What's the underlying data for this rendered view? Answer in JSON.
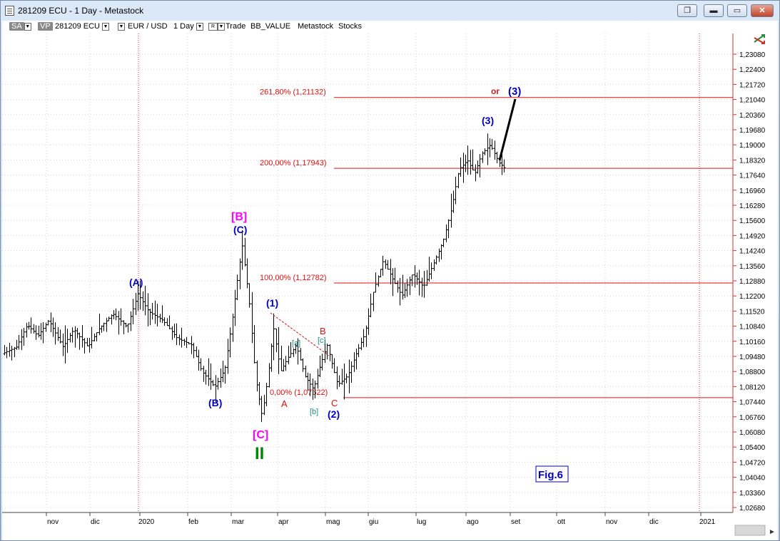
{
  "window": {
    "title": "281209 ECU - 1 Day - Metastock",
    "buttons": {
      "restore_label": "❐",
      "minimize_label": "▬",
      "maximize_label": "▭",
      "close_label": "✕"
    }
  },
  "toolbar": {
    "sa_label": "SA",
    "vp_label": "VP",
    "symbol": "281209 ECU",
    "pair": "EUR / USD",
    "period": "1 Day",
    "r_label": "R",
    "items": [
      "Trade",
      "BB_VALUE",
      "Metastock",
      "Stocks"
    ]
  },
  "chart_data": {
    "type": "ohlc",
    "yaxis_ticks": [
      "1,23080",
      "1,22400",
      "1,21720",
      "1,21040",
      "1,20360",
      "1,19680",
      "1,19000",
      "1,18320",
      "1,17640",
      "1,16960",
      "1,16280",
      "1,15600",
      "1,14920",
      "1,14240",
      "1,13560",
      "1,12880",
      "1,12200",
      "1,11520",
      "1,10840",
      "1,10160",
      "1,09480",
      "1,08800",
      "1,08120",
      "1,07440",
      "1,06760",
      "1,06080",
      "1,05400",
      "1,04720",
      "1,04040",
      "1,03360",
      "1,02680"
    ],
    "xaxis_ticks": [
      "nov",
      "dic",
      "2020",
      "feb",
      "mar",
      "apr",
      "mag",
      "giu",
      "lug",
      "ago",
      "set",
      "ott",
      "nov",
      "dic",
      "2021"
    ],
    "colors": {
      "wave_blue": "#0000c8",
      "label_red": "#e01010",
      "bracket_magenta": "#ff00ff",
      "teal": "#208c8c",
      "green": "#008800",
      "fib_line": "#e01010"
    },
    "fib_levels": [
      {
        "label": "261,80% (1,21132)",
        "value": 1.21132
      },
      {
        "label": "200,00% (1,17943)",
        "value": 1.17943
      },
      {
        "label": "100,00% (1,12782)",
        "value": 1.12782
      },
      {
        "label": "0,00% (1,07622)",
        "value": 1.07622
      }
    ],
    "wave_labels": {
      "A_big": "(A)",
      "B_big": "(B)",
      "C_big": "(C)",
      "B_bracket": "[B]",
      "C_bracket": "[C]",
      "II": "II",
      "w1": "(1)",
      "w2": "(2)",
      "w3": "(3)",
      "w3_alt": "(3)",
      "or": "or",
      "a_red": "A",
      "b_red": "B",
      "c_red": "C",
      "a_small": "[a]",
      "b_small": "[b]",
      "c_small": "[c]"
    },
    "figure_label": "Fig.6"
  }
}
